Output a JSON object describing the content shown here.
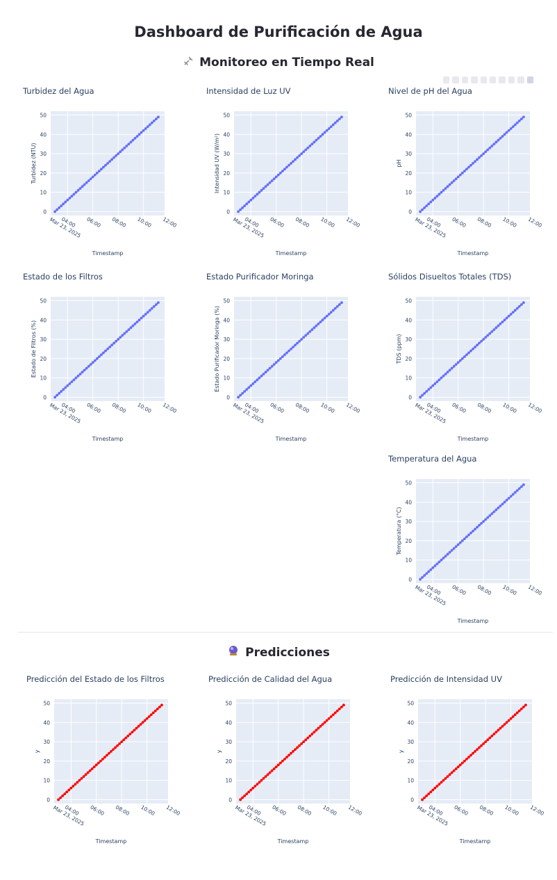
{
  "page": {
    "title": "Dashboard de Purificación de Agua",
    "monitor_title": "Monitoreo en Tiempo Real",
    "monitor_icon": "satellite-antenna-icon",
    "predictions_title": "Predicciones",
    "predictions_icon": "crystal-ball-icon"
  },
  "colors": {
    "monitor_series": "#636efa",
    "prediction_series": "#ff0000",
    "plot_bg": "#e5ecf6"
  },
  "charts": [
    {
      "title": "Turbidez del Agua",
      "ylabel": "Turbidez (NTU)",
      "xlabel": "Timestamp",
      "color": "#636efa"
    },
    {
      "title": "Intensidad de Luz UV",
      "ylabel": "Intensidad UV (W/m²)",
      "xlabel": "Timestamp",
      "color": "#636efa"
    },
    {
      "title": "Nivel de pH del Agua",
      "ylabel": "pH",
      "xlabel": "Timestamp",
      "color": "#636efa"
    },
    {
      "title": "Estado de los Filtros",
      "ylabel": "Estado de Filtros (%)",
      "xlabel": "Timestamp",
      "color": "#636efa"
    },
    {
      "title": "Estado Purificador Moringa",
      "ylabel": "Estado Purificador Moringa (%)",
      "xlabel": "Timestamp",
      "color": "#636efa"
    },
    {
      "title": "Sólidos Disueltos Totales (TDS)",
      "ylabel": "TDS (ppm)",
      "xlabel": "Timestamp",
      "color": "#636efa"
    },
    {
      "title": "Temperatura del Agua",
      "ylabel": "Temperatura (°C)",
      "xlabel": "Timestamp",
      "color": "#636efa"
    },
    {
      "title": "Predicción del Estado de los Filtros",
      "ylabel": "y",
      "xlabel": "Timestamp",
      "color": "#ff0000"
    },
    {
      "title": "Predicción de Calidad del Agua",
      "ylabel": "y",
      "xlabel": "Timestamp",
      "color": "#ff0000"
    },
    {
      "title": "Predicción de Intensidad UV",
      "ylabel": "y",
      "xlabel": "Timestamp",
      "color": "#ff0000"
    }
  ],
  "chart_data": {
    "type": "line",
    "x": [
      "2025-03-23 03:00",
      "2025-03-23 11:10"
    ],
    "y_start": 0,
    "y_end": 49,
    "point_count": 50,
    "ylim": [
      -2,
      52
    ],
    "xlim": [
      "2025-03-23 02:40",
      "2025-03-23 11:40"
    ],
    "yticks": [
      0,
      10,
      20,
      30,
      40,
      50
    ],
    "xticks": [
      "04:00\nMar 23, 2025",
      "06:00",
      "08:00",
      "10:00",
      "12:00"
    ],
    "grid": true,
    "markers": true
  }
}
